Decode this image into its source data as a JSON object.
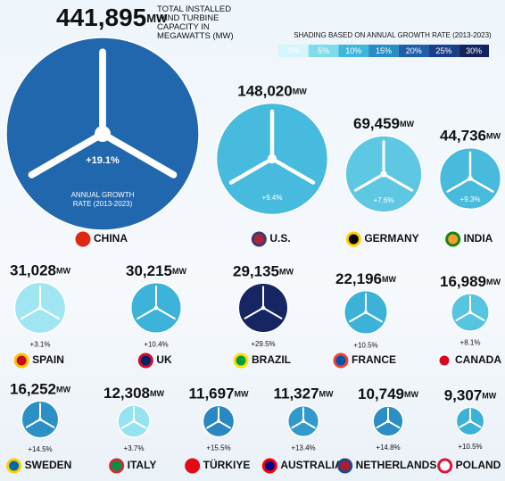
{
  "chart_data": {
    "type": "bubble",
    "title": "TOTAL INSTALLED WIND TURBINE CAPACITY IN MEGAWATTS (MW)",
    "unit": "MW",
    "growth_title": "ANNUAL GROWTH RATE (2013-2023)",
    "color_scale": {
      "title": "SHADING BASED ON ANNUAL GROWTH RATE (2013-2023)",
      "ticks": [
        {
          "value": 0,
          "label": "0%"
        },
        {
          "value": 5,
          "label": "5%"
        },
        {
          "value": 10,
          "label": "10%"
        },
        {
          "value": 15,
          "label": "15%"
        },
        {
          "value": 20,
          "label": "20%"
        },
        {
          "value": 25,
          "label": "25%"
        },
        {
          "value": 30,
          "label": "30%"
        }
      ],
      "colors": [
        "#d4f5fb",
        "#7fdcec",
        "#3fb6db",
        "#2a8cc4",
        "#1f5fa8",
        "#1a3f8a",
        "#14235e"
      ]
    },
    "categories": [
      "CHINA",
      "U.S.",
      "GERMANY",
      "INDIA",
      "SPAIN",
      "UK",
      "BRAZIL",
      "FRANCE",
      "CANADA",
      "SWEDEN",
      "ITALY",
      "TÜRKIYE",
      "AUSTRALIA",
      "NETHERLANDS",
      "POLAND"
    ],
    "values": [
      441895,
      148020,
      69459,
      44736,
      31028,
      30215,
      29135,
      22196,
      16989,
      16252,
      12308,
      11697,
      11327,
      10749,
      9307
    ],
    "value_labels": [
      "441,895",
      "148,020",
      "69,459",
      "44,736",
      "31,028",
      "30,215",
      "29,135",
      "22,196",
      "16,989",
      "16,252",
      "12,308",
      "11,697",
      "11,327",
      "10,749",
      "9,307"
    ],
    "growth": [
      19.1,
      9.4,
      7.6,
      9.3,
      3.1,
      10.4,
      29.5,
      10.5,
      8.1,
      14.5,
      3.7,
      15.5,
      13.4,
      14.8,
      10.5
    ],
    "growth_labels": [
      "+19.1%",
      "+9.4%",
      "+7.6%",
      "+9.3%",
      "+3.1%",
      "+10.4%",
      "+29.5%",
      "+10.5%",
      "+8.1%",
      "+14.5%",
      "+3.7%",
      "+15.5%",
      "+13.4%",
      "+14.8%",
      "+10.5%"
    ]
  }
}
